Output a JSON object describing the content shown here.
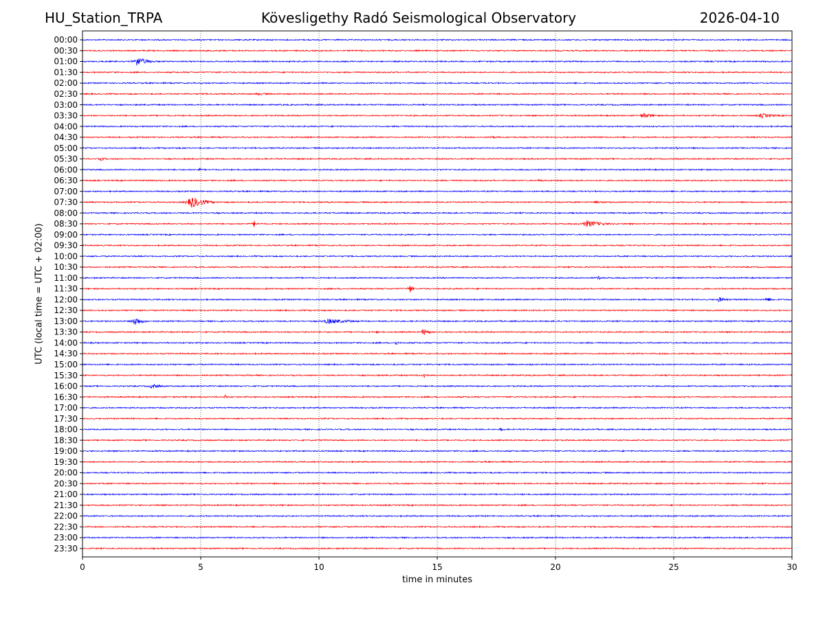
{
  "header": {
    "station": "HU_Station_TRPA",
    "observatory": "Kövesligethy Radó Seismological Observatory",
    "date": "2026-04-10"
  },
  "chart_data": {
    "type": "line",
    "title": "Kövesligethy Radó Seismological Observatory",
    "xlabel": "time in minutes",
    "ylabel": "UTC (local time = UTC + 02:00)",
    "xlim": [
      0,
      30
    ],
    "xticks": [
      0,
      5,
      10,
      15,
      20,
      25,
      30
    ],
    "grid": "vertical dotted at x = 5, 10, 15, 20, 25",
    "colors": {
      "even_rows": "#0000ff",
      "odd_rows": "#ff0000"
    },
    "rows": [
      "00:00",
      "00:30",
      "01:00",
      "01:30",
      "02:00",
      "02:30",
      "03:00",
      "03:30",
      "04:00",
      "04:30",
      "05:00",
      "05:30",
      "06:00",
      "06:30",
      "07:00",
      "07:30",
      "08:00",
      "08:30",
      "09:00",
      "09:30",
      "10:00",
      "10:30",
      "11:00",
      "11:30",
      "12:00",
      "12:30",
      "13:00",
      "13:30",
      "14:00",
      "14:30",
      "15:00",
      "15:30",
      "16:00",
      "16:30",
      "17:00",
      "17:30",
      "18:00",
      "18:30",
      "19:00",
      "19:30",
      "20:00",
      "20:30",
      "21:00",
      "21:30",
      "22:00",
      "22:30",
      "23:00",
      "23:30"
    ],
    "events": [
      {
        "row": "01:00",
        "t": 2.1,
        "dur": 1.2,
        "amp": 7
      },
      {
        "row": "02:30",
        "t": 7.2,
        "dur": 1.5,
        "amp": 2
      },
      {
        "row": "03:30",
        "t": 23.5,
        "dur": 1.3,
        "amp": 4
      },
      {
        "row": "03:30",
        "t": 28.5,
        "dur": 1.5,
        "amp": 3.5
      },
      {
        "row": "04:30",
        "t": 17.2,
        "dur": 0.6,
        "amp": 2.5
      },
      {
        "row": "05:00",
        "t": 25.0,
        "dur": 0.8,
        "amp": 2
      },
      {
        "row": "05:30",
        "t": 0.7,
        "dur": 0.5,
        "amp": 3
      },
      {
        "row": "06:00",
        "t": 4.9,
        "dur": 0.2,
        "amp": 4
      },
      {
        "row": "06:30",
        "t": 19.0,
        "dur": 2.0,
        "amp": 1.5
      },
      {
        "row": "07:30",
        "t": 4.4,
        "dur": 1.3,
        "amp": 9
      },
      {
        "row": "07:30",
        "t": 21.5,
        "dur": 1.5,
        "amp": 2
      },
      {
        "row": "08:30",
        "t": 7.2,
        "dur": 0.3,
        "amp": 6
      },
      {
        "row": "08:30",
        "t": 21.0,
        "dur": 2.0,
        "amp": 5
      },
      {
        "row": "11:00",
        "t": 21.7,
        "dur": 0.6,
        "amp": 3
      },
      {
        "row": "11:30",
        "t": 13.8,
        "dur": 0.3,
        "amp": 7
      },
      {
        "row": "12:00",
        "t": 26.8,
        "dur": 0.8,
        "amp": 4
      },
      {
        "row": "12:00",
        "t": 28.8,
        "dur": 0.8,
        "amp": 3.5
      },
      {
        "row": "13:00",
        "t": 2.1,
        "dur": 0.8,
        "amp": 7
      },
      {
        "row": "13:00",
        "t": 10.0,
        "dur": 2.5,
        "amp": 4
      },
      {
        "row": "13:30",
        "t": 12.4,
        "dur": 0.3,
        "amp": 2.5
      },
      {
        "row": "13:30",
        "t": 14.3,
        "dur": 0.7,
        "amp": 5
      },
      {
        "row": "14:00",
        "t": 13.2,
        "dur": 0.3,
        "amp": 4
      },
      {
        "row": "15:30",
        "t": 14.4,
        "dur": 0.2,
        "amp": 6
      },
      {
        "row": "16:00",
        "t": 2.8,
        "dur": 0.9,
        "amp": 4
      },
      {
        "row": "16:30",
        "t": 6.0,
        "dur": 0.2,
        "amp": 5
      },
      {
        "row": "18:00",
        "t": 17.6,
        "dur": 0.5,
        "amp": 3
      },
      {
        "row": "18:00",
        "t": 19.95,
        "dur": 0.1,
        "amp": 4
      }
    ]
  }
}
